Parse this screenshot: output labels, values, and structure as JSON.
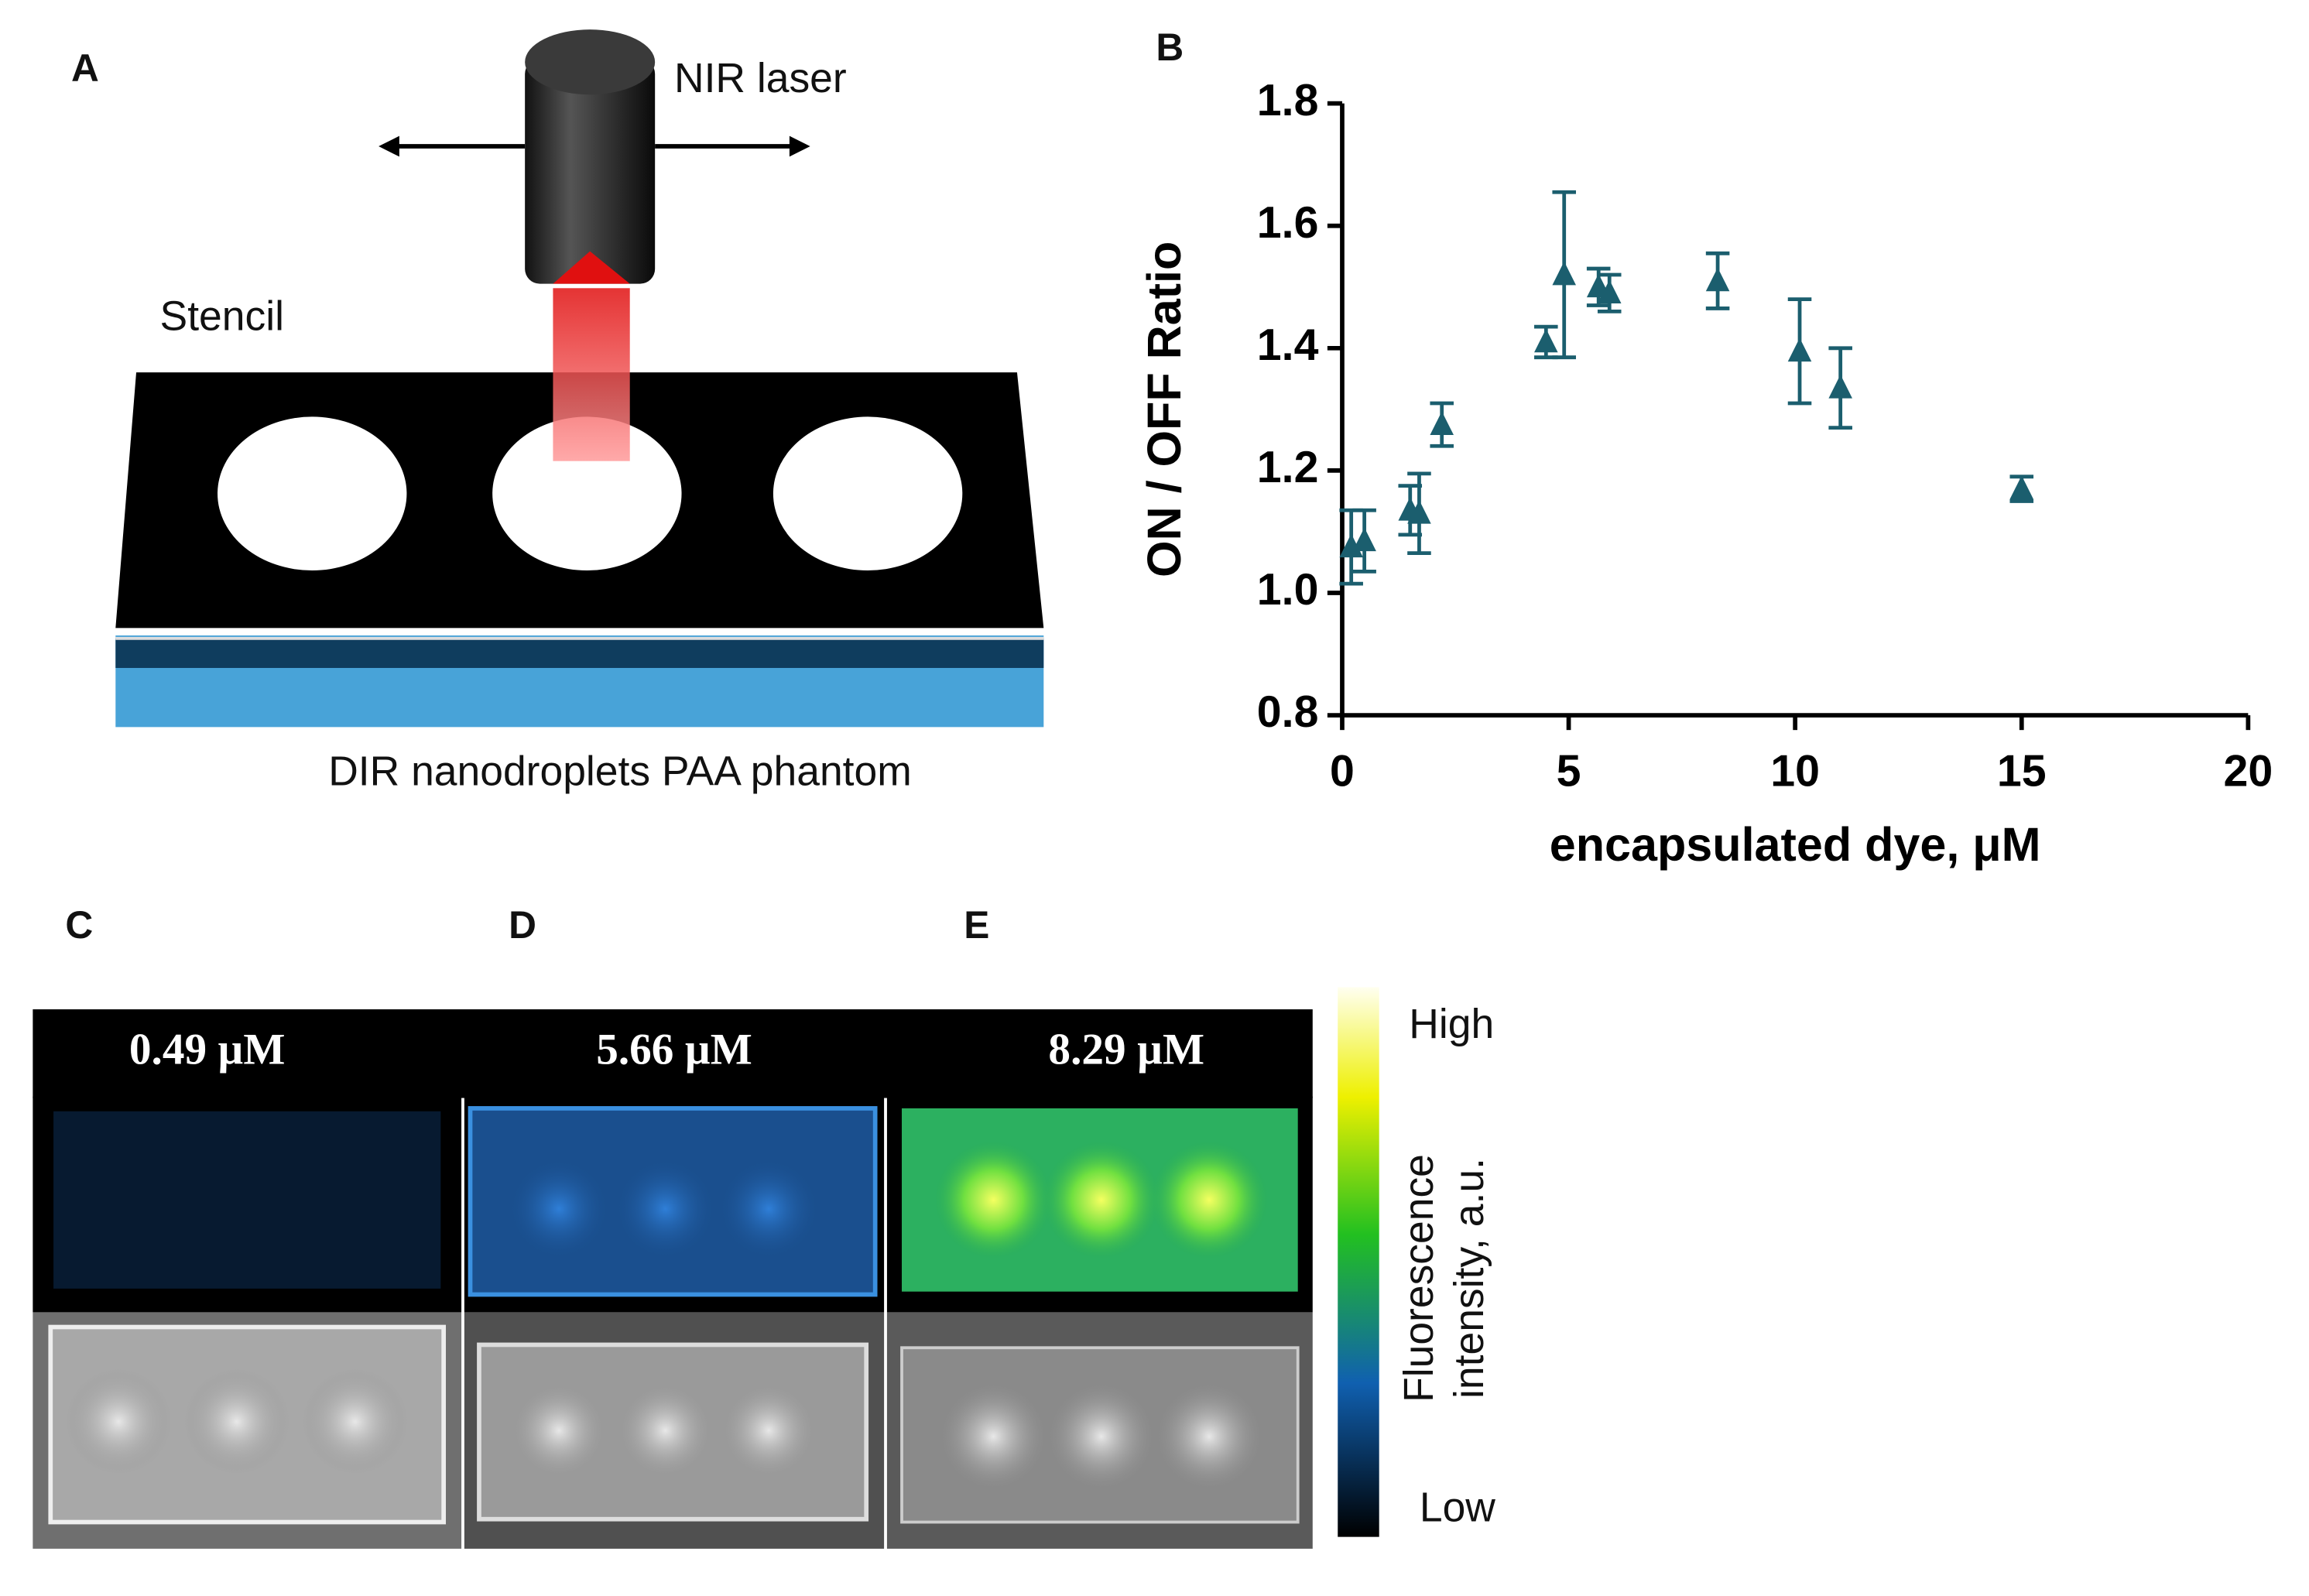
{
  "panels": {
    "a": {
      "letter": "A",
      "laser": "NIR laser",
      "stencil": "Stencil",
      "phantom": "DIR nanodroplets PAA phantom"
    },
    "b": {
      "letter": "B"
    },
    "c": {
      "letter": "C",
      "concentration": "0.49 µM"
    },
    "d": {
      "letter": "D",
      "concentration": "5.66 µM"
    },
    "e": {
      "letter": "E",
      "concentration": "8.29 µM"
    },
    "colorbar": {
      "high": "High",
      "low": "Low",
      "title_line1": "Fluorescence",
      "title_line2": "intensity, a.u."
    }
  },
  "chart_data": {
    "type": "scatter",
    "x_label": "encapsulated dye, μM",
    "y_label": "ON / OFF Ratio",
    "x": [
      0.2,
      0.49,
      1.5,
      1.7,
      2.2,
      4.5,
      4.9,
      5.66,
      5.9,
      8.29,
      10.1,
      11.0,
      15.0
    ],
    "series": [
      {
        "color": "#1b5e6e",
        "values": [
          1.075,
          1.085,
          1.135,
          1.13,
          1.275,
          1.41,
          1.52,
          1.5,
          1.49,
          1.51,
          1.395,
          1.335,
          1.17
        ],
        "errors": [
          0.06,
          0.05,
          0.04,
          0.065,
          0.035,
          0.025,
          0.135,
          0.03,
          0.03,
          0.045,
          0.085,
          0.065,
          0.02
        ]
      }
    ],
    "xlim": [
      0,
      20
    ],
    "xticks": [
      0,
      5,
      10,
      15,
      20
    ],
    "ylim": [
      0.8,
      1.8
    ],
    "yticks": [
      0.8,
      {
        "value": 1,
        "label": "1.0"
      },
      1.2,
      1.4,
      1.6,
      1.8
    ]
  }
}
